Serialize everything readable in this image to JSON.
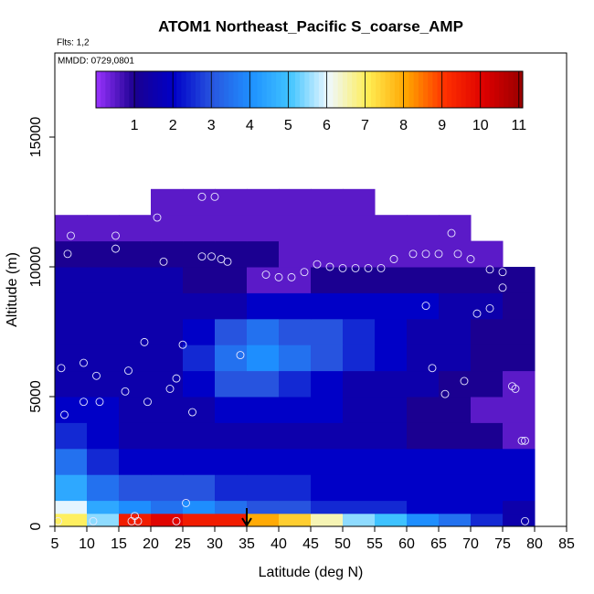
{
  "chart_data": {
    "type": "heatmap",
    "title": "ATOM1 Northeast_Pacific S_coarse_AMP",
    "subtitle": "Flts: 1,2",
    "annotation": "MMDD: 0729,0801",
    "x_label": "Latitude (deg N)",
    "y_label": "Altitude (m)",
    "xlim": [
      5,
      85
    ],
    "ylim": [
      0,
      18240
    ],
    "xticks": [
      5,
      10,
      15,
      20,
      25,
      30,
      35,
      40,
      45,
      50,
      55,
      60,
      65,
      70,
      75,
      80,
      85
    ],
    "yticks": [
      0,
      5000,
      10000,
      15000
    ],
    "x_edges": [
      5,
      10,
      15,
      20,
      25,
      30,
      35,
      40,
      45,
      50,
      55,
      60,
      65,
      70,
      75,
      80
    ],
    "y_edges": [
      0,
      500,
      1000,
      2000,
      3000,
      4000,
      5000,
      6000,
      7000,
      8000,
      9000,
      10000,
      11000,
      12000,
      13000
    ],
    "z": [
      [
        7,
        5.5,
        9.5,
        10,
        9.5,
        9.5,
        8,
        7.5,
        6.5,
        5.5,
        5,
        4,
        3.5,
        2.5,
        1.5
      ],
      [
        6,
        4.5,
        4,
        3.5,
        4,
        3.5,
        3,
        3,
        2.5,
        2.5,
        2.5,
        2,
        2,
        2,
        1.5
      ],
      [
        4.5,
        3.5,
        3,
        3,
        3,
        2.5,
        2.5,
        2.5,
        2,
        2,
        2,
        2,
        2,
        2,
        2
      ],
      [
        3.5,
        2.5,
        2,
        2,
        2,
        2,
        2,
        2,
        2,
        2,
        2,
        2,
        2,
        2,
        2
      ],
      [
        2.5,
        2,
        1.5,
        1.5,
        1.5,
        1.5,
        1.5,
        1.5,
        1.5,
        1.5,
        1.5,
        1,
        1,
        1,
        0.5
      ],
      [
        2,
        2,
        1.5,
        1.5,
        1.5,
        2,
        2,
        2,
        2,
        1.5,
        1.5,
        1,
        1,
        0.5,
        0.5
      ],
      [
        1.5,
        1.5,
        1.5,
        1.5,
        2,
        3,
        3,
        2.5,
        2,
        1.5,
        1.5,
        1.5,
        1,
        1,
        0.5
      ],
      [
        1.5,
        1.5,
        1.5,
        1.5,
        2.5,
        3.5,
        4,
        3.5,
        3,
        2.5,
        2,
        1.5,
        1.5,
        1,
        1
      ],
      [
        1.5,
        1.5,
        1.5,
        1.5,
        2,
        3,
        3.5,
        3,
        3,
        2.5,
        2,
        1.5,
        1.5,
        1,
        1
      ],
      [
        1.5,
        1.5,
        1.5,
        1.5,
        1.5,
        1.5,
        2,
        2,
        2,
        2,
        2,
        2,
        1.5,
        1.5,
        1
      ],
      [
        1.5,
        1.5,
        1.5,
        1.5,
        1,
        1,
        0.5,
        0.5,
        1,
        1,
        1,
        1,
        1,
        1,
        1
      ],
      [
        1,
        1,
        1,
        1,
        1,
        1,
        1,
        0.5,
        0.5,
        0.5,
        0.5,
        0.5,
        0.5,
        0.5,
        null
      ],
      [
        0.5,
        0.5,
        0.5,
        0.5,
        0.5,
        0.5,
        0.5,
        0.5,
        0.5,
        0.5,
        0.5,
        0.5,
        0.5,
        null,
        null
      ],
      [
        null,
        null,
        null,
        0.5,
        0.5,
        0.5,
        0.5,
        0.5,
        0.5,
        0.5,
        null,
        null,
        null,
        null,
        null
      ]
    ],
    "colorscale": {
      "range": [
        0,
        11.1
      ],
      "ticks": [
        1,
        2,
        3,
        4,
        5,
        6,
        7,
        8,
        9,
        10,
        11
      ],
      "colors": [
        "#9a33ff",
        "#1a0090",
        "#0000c8",
        "#2856e0",
        "#1e90ff",
        "#40c4ff",
        "#eef8ff",
        "#ffee55",
        "#ffa500",
        "#ff3000",
        "#dd0000",
        "#990000"
      ]
    },
    "points": {
      "x": [
        5.5,
        6,
        6.5,
        7,
        7.5,
        9.5,
        9.5,
        11,
        11.5,
        12,
        14.5,
        14.5,
        16,
        16.5,
        17,
        17.5,
        18,
        19,
        19.5,
        21,
        22,
        23,
        24,
        24,
        25,
        25.5,
        26.5,
        28,
        28,
        29.5,
        30,
        31,
        32,
        34,
        38,
        40,
        42,
        44,
        46,
        48,
        50,
        52,
        54,
        56,
        58,
        61,
        63,
        63,
        64,
        65,
        66,
        67,
        68,
        69,
        70,
        71,
        73,
        73,
        75,
        75,
        76.5,
        77,
        78,
        78.5,
        78.5
      ],
      "y": [
        200,
        6100,
        4300,
        10500,
        11200,
        6300,
        4800,
        200,
        5800,
        4800,
        11200,
        10700,
        5200,
        6000,
        200,
        400,
        200,
        7100,
        4800,
        11900,
        10200,
        5300,
        5700,
        200,
        7000,
        900,
        4400,
        12700,
        10400,
        10400,
        12700,
        10300,
        10200,
        6600,
        9700,
        9600,
        9600,
        9800,
        10100,
        10000,
        9950,
        9950,
        9950,
        9950,
        10300,
        10500,
        10500,
        8500,
        6100,
        10500,
        5100,
        11300,
        10500,
        5600,
        10300,
        8200,
        8400,
        9900,
        9800,
        9200,
        5400,
        5300,
        3300,
        3300,
        200
      ]
    },
    "arrow_x": 35
  }
}
